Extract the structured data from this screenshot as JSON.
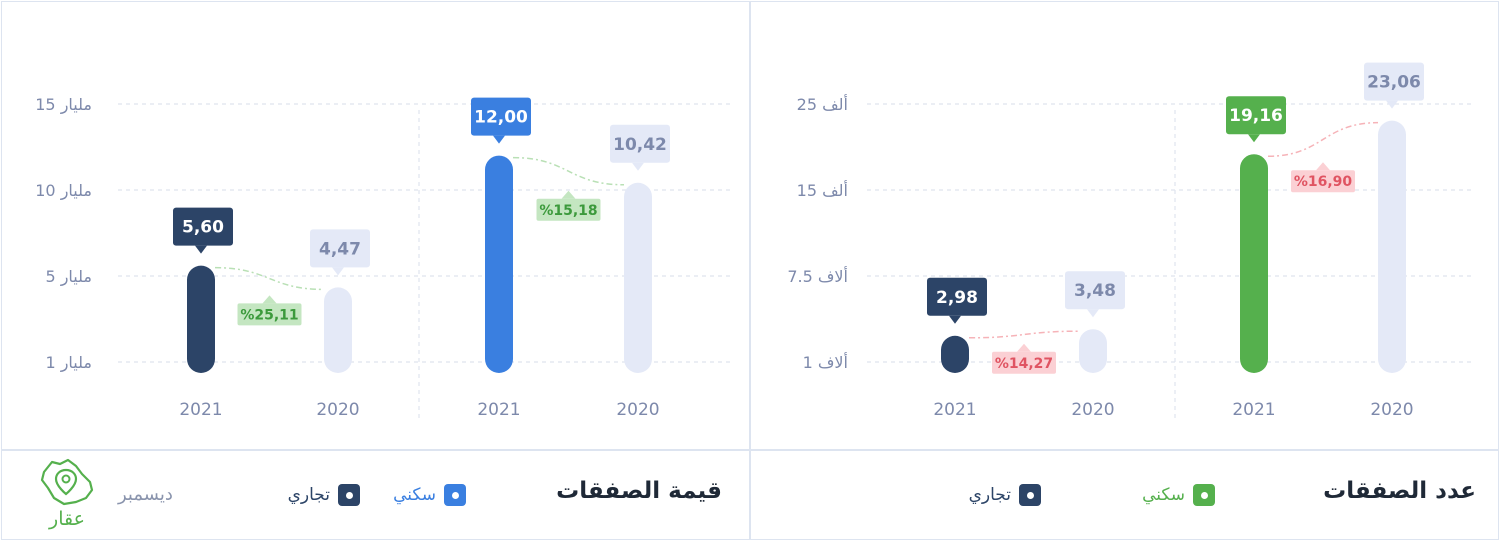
{
  "colors": {
    "ghost": "#e4e9f7",
    "ghost_text": "#7d89ab",
    "commercial": "#2c4467",
    "residential_value": "#3a7fe0",
    "residential_count": "#55b04d",
    "badge_up_bg": "#c4e6c1",
    "badge_up_text": "#3c9a3c",
    "badge_down_bg": "#fbd0d4",
    "badge_down_text": "#e05462",
    "axis_text": "#7d89ab",
    "grid": "#dfe4ee"
  },
  "value_panel": {
    "title": "قيمة الصفقات",
    "legend": {
      "residential": "سكني",
      "commercial": "تجاري"
    },
    "month": "ديسمبر",
    "logo_text": "عقار",
    "logo_icon": "saudi-map-pin-icon"
  },
  "count_panel": {
    "title": "عدد الصفقات",
    "legend": {
      "residential": "سكني",
      "commercial": "تجاري"
    }
  },
  "chart_data": [
    {
      "type": "bar",
      "title": "قيمة الصفقات",
      "y_ticks": [
        {
          "value": 1,
          "label": "1 مليار"
        },
        {
          "value": 5,
          "label": "5 مليار"
        },
        {
          "value": 10,
          "label": "10 مليار"
        },
        {
          "value": 15,
          "label": "15 مليار"
        }
      ],
      "groups": [
        {
          "series": "تجاري",
          "bars": [
            {
              "year": "2021",
              "value": 5.6,
              "label": "5,60",
              "current": true
            },
            {
              "year": "2020",
              "value": 4.47,
              "label": "4,47",
              "current": false
            }
          ],
          "change": {
            "label": "%25,11",
            "direction": "up"
          }
        },
        {
          "series": "سكني",
          "bars": [
            {
              "year": "2021",
              "value": 12.0,
              "label": "12,00",
              "current": true
            },
            {
              "year": "2020",
              "value": 10.42,
              "label": "10,42",
              "current": false
            }
          ],
          "change": {
            "label": "%15,18",
            "direction": "up"
          }
        }
      ]
    },
    {
      "type": "bar",
      "title": "عدد الصفقات",
      "y_ticks": [
        {
          "value": 1,
          "label": "1 ألاف"
        },
        {
          "value": 7.5,
          "label": "7.5 ألاف"
        },
        {
          "value": 15,
          "label": "15 ألف"
        },
        {
          "value": 25,
          "label": "25 ألف"
        }
      ],
      "groups": [
        {
          "series": "تجاري",
          "bars": [
            {
              "year": "2021",
              "value": 2.98,
              "label": "2,98",
              "current": true
            },
            {
              "year": "2020",
              "value": 3.48,
              "label": "3,48",
              "current": false
            }
          ],
          "change": {
            "label": "%14,27",
            "direction": "down"
          }
        },
        {
          "series": "سكني",
          "bars": [
            {
              "year": "2021",
              "value": 19.16,
              "label": "19,16",
              "current": true
            },
            {
              "year": "2020",
              "value": 23.06,
              "label": "23,06",
              "current": false
            }
          ],
          "change": {
            "label": "%16,90",
            "direction": "down"
          }
        }
      ]
    }
  ]
}
